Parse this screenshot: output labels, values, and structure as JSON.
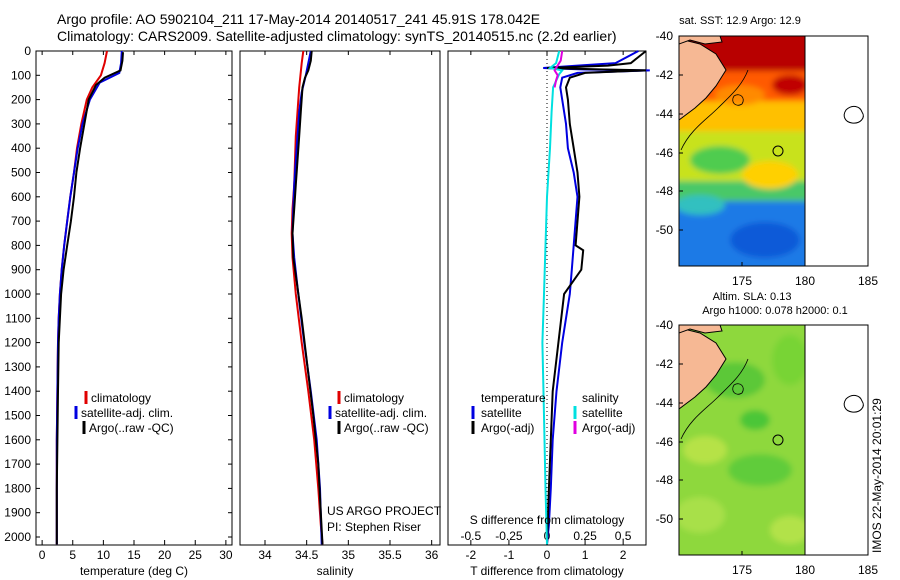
{
  "header": {
    "line1": "Argo profile: AO 5902104_211 17-May-2014 20140517_241 45.91S 178.042E",
    "line2": "Climatology: CARS2009. Satellite-adjusted climatology: synTS_20140515.nc (2.2d earlier)"
  },
  "footer": {
    "project": "US ARGO PROJECT",
    "pi": "PI: Stephen Riser",
    "stamp": "IMOS 22-May-2014 20:01:29"
  },
  "colors": {
    "climatology": "#e00000",
    "satellite": "#0000e0",
    "argo": "#000000",
    "sal_satellite": "#00e0e0",
    "sal_argo": "#e000e0"
  },
  "chart_data": [
    {
      "id": "temperature",
      "type": "line",
      "xlabel": "temperature (deg C)",
      "ylabel": "",
      "xlim": [
        -1,
        31
      ],
      "xticks": [
        0,
        5,
        10,
        15,
        20,
        25,
        30
      ],
      "ylim": [
        0,
        2050
      ],
      "yticks": [
        0,
        100,
        200,
        300,
        400,
        500,
        600,
        700,
        800,
        900,
        1000,
        1100,
        1200,
        1300,
        1400,
        1500,
        1600,
        1700,
        1800,
        1900,
        2000
      ],
      "legend": [
        "climatology",
        "satellite-adj. clim.",
        "Argo(..raw -QC)"
      ],
      "series": [
        {
          "name": "climatology",
          "x": [
            10.6,
            10.2,
            9.6,
            8.2,
            7.3,
            6.4,
            5.7,
            5.2,
            4.6,
            4.1,
            3.6,
            3.2,
            2.9,
            2.7,
            2.6,
            2.5,
            2.4,
            2.4,
            2.4
          ],
          "y": [
            0,
            50,
            100,
            150,
            200,
            300,
            400,
            500,
            600,
            700,
            800,
            900,
            1000,
            1100,
            1200,
            1400,
            1600,
            1800,
            2030
          ]
        },
        {
          "name": "satellite-adj. clim.",
          "x": [
            13.0,
            12.9,
            12.6,
            9.4,
            7.8,
            6.6,
            5.8,
            5.2,
            4.6,
            4.1,
            3.6,
            3.2,
            2.9,
            2.7,
            2.6,
            2.5,
            2.4,
            2.4,
            2.4
          ],
          "y": [
            0,
            50,
            90,
            130,
            200,
            300,
            400,
            500,
            600,
            700,
            800,
            900,
            1000,
            1100,
            1200,
            1400,
            1600,
            1800,
            2030
          ]
        },
        {
          "name": "Argo(..raw -QC)",
          "x": [
            13.2,
            13.1,
            12.8,
            10.2,
            8.8,
            7.6,
            6.9,
            6.2,
            5.6,
            5.2,
            4.7,
            4.1,
            3.5,
            3.1,
            2.9,
            2.7,
            2.6,
            2.5,
            2.4,
            2.4
          ],
          "y": [
            5,
            40,
            80,
            110,
            140,
            200,
            300,
            400,
            500,
            600,
            700,
            800,
            900,
            1000,
            1100,
            1200,
            1400,
            1600,
            1800,
            2030
          ]
        }
      ]
    },
    {
      "id": "salinity",
      "type": "line",
      "xlabel": "salinity",
      "ylabel": "",
      "xlim": [
        33.7,
        36.1
      ],
      "xticks": [
        34,
        34.5,
        35,
        35.5,
        36
      ],
      "ylim": [
        0,
        2050
      ],
      "legend": [
        "climatology",
        "satellite-adj. clim.",
        "Argo(..raw -QC)"
      ],
      "series": [
        {
          "name": "climatology",
          "x": [
            34.46,
            34.44,
            34.41,
            34.39,
            34.37,
            34.36,
            34.35,
            34.33,
            34.32,
            34.33,
            34.37,
            34.44,
            34.52,
            34.59,
            34.64,
            34.67,
            34.69
          ],
          "y": [
            0,
            50,
            150,
            250,
            350,
            450,
            550,
            650,
            750,
            850,
            1000,
            1200,
            1400,
            1600,
            1800,
            1950,
            2030
          ]
        },
        {
          "name": "satellite-adj. clim.",
          "x": [
            34.55,
            34.52,
            34.49,
            34.44,
            34.41,
            34.39,
            34.37,
            34.35,
            34.34,
            34.33,
            34.35,
            34.4,
            34.47,
            34.55,
            34.62,
            34.66,
            34.68
          ],
          "y": [
            0,
            50,
            100,
            170,
            250,
            350,
            450,
            550,
            650,
            750,
            850,
            1000,
            1200,
            1400,
            1600,
            1800,
            2030
          ]
        },
        {
          "name": "Argo(..raw -QC)",
          "x": [
            34.56,
            34.55,
            34.52,
            34.48,
            34.45,
            34.43,
            34.41,
            34.39,
            34.37,
            34.35,
            34.33,
            34.34,
            34.38,
            34.44,
            34.51,
            34.58,
            34.64,
            34.67,
            34.69
          ],
          "y": [
            0,
            40,
            80,
            110,
            150,
            250,
            350,
            450,
            550,
            650,
            750,
            850,
            950,
            1100,
            1300,
            1500,
            1700,
            1900,
            2030
          ]
        }
      ]
    },
    {
      "id": "difference",
      "type": "line",
      "xlabel": "T difference from climatology",
      "x2label": "S difference from climatology",
      "xlim": [
        -2.6,
        2.6
      ],
      "xticks": [
        -2,
        -1,
        0,
        1,
        2
      ],
      "x2ticks": [
        -0.5,
        -0.25,
        0,
        0.25,
        0.5
      ],
      "ylim": [
        0,
        2050
      ],
      "legend_headers": [
        "temperature",
        "salinity"
      ],
      "legend": [
        "satellite",
        "Argo(-adj)",
        "satellite",
        "Argo(-adj)"
      ],
      "series": [
        {
          "name": "satellite",
          "group": "temperature",
          "x": [
            2.4,
            1.8,
            0.8,
            -0.1,
            1.0,
            2.7,
            0.8,
            0.4,
            0.35,
            0.4,
            0.5,
            0.55,
            0.7,
            0.8,
            0.75,
            0.7,
            0.65,
            0.6,
            0.4,
            0.25,
            0.15,
            0.1,
            0.05,
            0.0
          ],
          "y": [
            0,
            50,
            60,
            70,
            76,
            80,
            90,
            110,
            150,
            200,
            300,
            400,
            500,
            600,
            700,
            800,
            900,
            1000,
            1200,
            1400,
            1600,
            1800,
            1950,
            2030
          ]
        },
        {
          "name": "Argo(-adj)",
          "group": "temperature",
          "x": [
            2.6,
            2.2,
            1.6,
            0.0,
            1.5,
            2.6,
            1.0,
            0.6,
            0.5,
            0.55,
            0.6,
            0.7,
            0.8,
            0.85,
            0.8,
            0.75,
            0.95,
            0.9,
            0.45,
            0.3,
            0.15,
            0.1,
            0.05,
            0.0
          ],
          "y": [
            0,
            50,
            60,
            70,
            76,
            80,
            90,
            110,
            150,
            200,
            300,
            400,
            500,
            600,
            700,
            800,
            820,
            900,
            1000,
            1200,
            1400,
            1600,
            1800,
            2030
          ]
        },
        {
          "name": "satellite",
          "group": "salinity",
          "x": [
            0.08,
            0.06,
            0.02,
            0.1,
            0.08,
            0.04,
            0.03,
            0.02,
            0.0,
            -0.01,
            -0.02,
            -0.03,
            -0.02,
            -0.01,
            0.0
          ],
          "y": [
            0,
            50,
            70,
            80,
            95,
            150,
            250,
            400,
            600,
            800,
            1000,
            1200,
            1500,
            1800,
            2030
          ]
        },
        {
          "name": "Argo(-adj)",
          "group": "salinity",
          "x": [
            0.1,
            0.09,
            0.05,
            0.07,
            0.06,
            0.05
          ],
          "y": [
            0,
            40,
            80,
            100,
            120,
            150
          ]
        }
      ]
    }
  ],
  "maps": {
    "sst": {
      "title": "sat. SST: 12.9 Argo: 12.9",
      "xticks": [
        "175",
        "180",
        "185"
      ],
      "yticks": [
        "-40",
        "-42",
        "-44",
        "-46",
        "-48",
        "-50"
      ]
    },
    "sla": {
      "title1": "Altim. SLA: 0.13",
      "title2": "Argo h1000: 0.078 h2000: 0.1",
      "xticks": [
        "175",
        "180",
        "185"
      ],
      "yticks": [
        "-40",
        "-42",
        "-44",
        "-46",
        "-48",
        "-50"
      ]
    }
  }
}
